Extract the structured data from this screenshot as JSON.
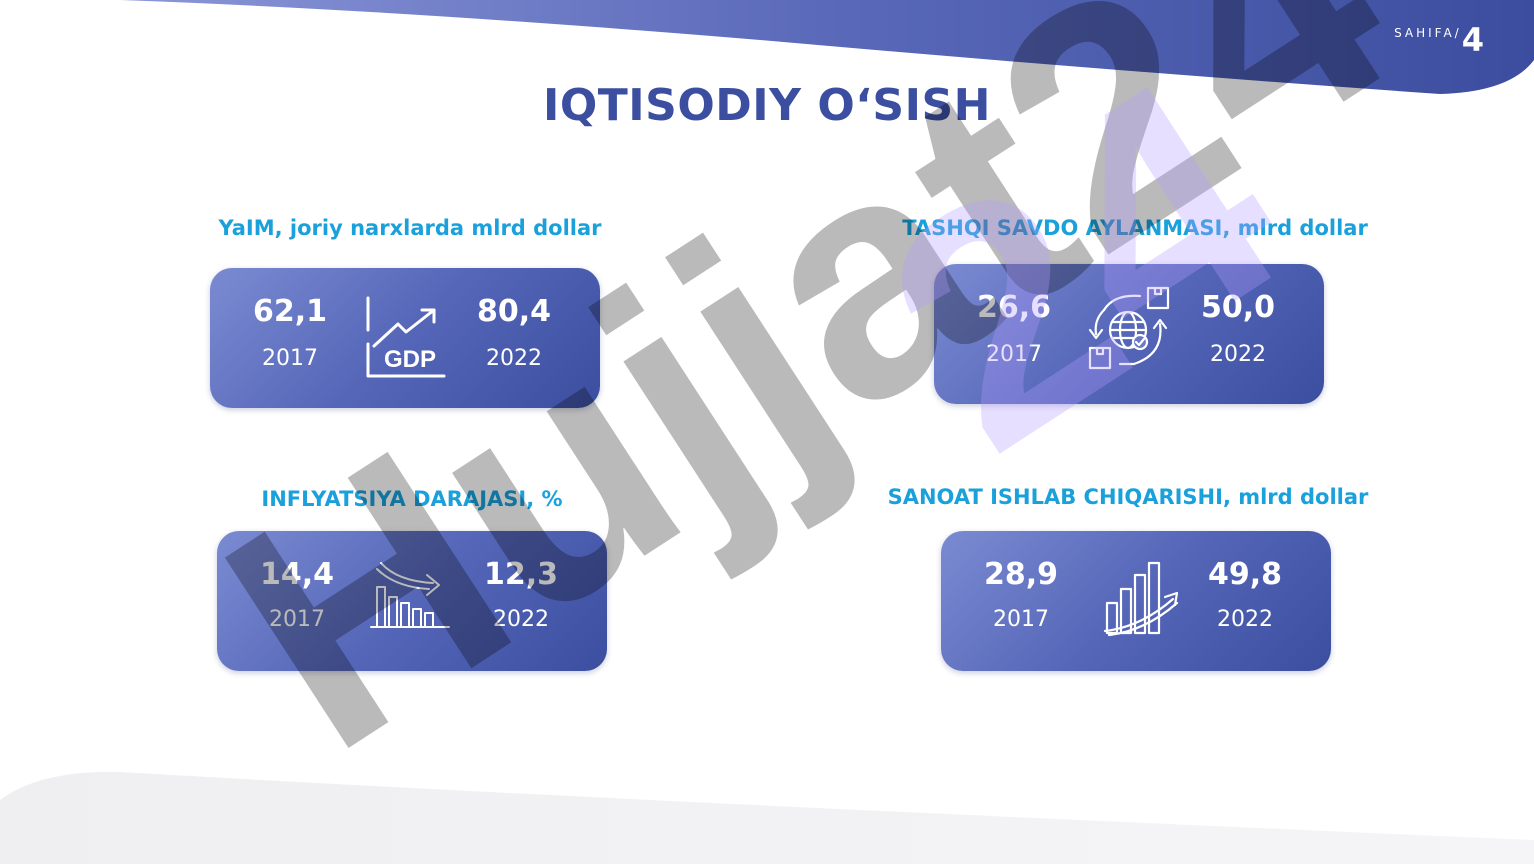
{
  "page": {
    "label": "SAHIFA/",
    "number": "4"
  },
  "title": "IQTISODIY O‘SISH",
  "watermark": "Hujjat24",
  "cards": [
    {
      "caption": "YaIM, joriy narxlarda mlrd dollar",
      "v2017": "62,1",
      "y2017": "2017",
      "v2022": "80,4",
      "y2022": "2022",
      "icon": "gdp-growth-icon",
      "icon_text": "GDP"
    },
    {
      "caption": "TASHQI SAVDO AYLANMASI, mlrd dollar",
      "v2017": "26,6",
      "y2017": "2017",
      "v2022": "50,0",
      "y2022": "2022",
      "icon": "global-trade-icon"
    },
    {
      "caption": "INFLYATSIYA DARAJASI, %",
      "v2017": "14,4",
      "y2017": "2017",
      "v2022": "12,3",
      "y2022": "2022",
      "icon": "declining-chart-icon"
    },
    {
      "caption": "SANOAT ISHLAB CHIQARISHI, mlrd dollar",
      "v2017": "28,9",
      "y2017": "2017",
      "v2022": "49,8",
      "y2022": "2022",
      "icon": "rising-chart-icon"
    }
  ],
  "colors": {
    "primary": "#3b4ea0",
    "accent": "#1aa1dc",
    "card_light": "#7b8bd2",
    "card_dark": "#3b4e9f"
  }
}
